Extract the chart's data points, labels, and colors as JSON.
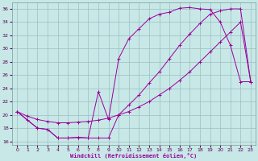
{
  "xlabel": "Windchill (Refroidissement éolien,°C)",
  "background_color": "#c8e8e8",
  "line_color": "#990099",
  "grid_color": "#9bbebe",
  "xlim": [
    -0.5,
    23.5
  ],
  "ylim": [
    15.5,
    37.0
  ],
  "xticks": [
    0,
    1,
    2,
    3,
    4,
    5,
    6,
    7,
    8,
    9,
    10,
    11,
    12,
    13,
    14,
    15,
    16,
    17,
    18,
    19,
    20,
    21,
    22,
    23
  ],
  "yticks": [
    16,
    18,
    20,
    22,
    24,
    26,
    28,
    30,
    32,
    34,
    36
  ],
  "curve1_x": [
    0,
    1,
    2,
    3,
    4,
    5,
    6,
    7,
    8,
    9,
    10,
    11,
    12,
    13,
    14,
    15,
    16,
    17,
    18,
    19,
    20,
    21,
    22,
    23
  ],
  "curve1_y": [
    20.5,
    19.2,
    18.0,
    17.8,
    16.5,
    16.5,
    16.6,
    16.5,
    23.5,
    19.3,
    28.5,
    31.5,
    33.0,
    34.5,
    35.2,
    35.5,
    36.1,
    36.2,
    36.0,
    35.9,
    34.0,
    30.5,
    25.0,
    25.0
  ],
  "curve2_x": [
    0,
    2,
    3,
    4,
    5,
    6,
    7,
    8,
    9,
    10,
    11,
    12,
    13,
    14,
    15,
    16,
    17,
    18,
    19,
    20,
    21,
    22,
    23
  ],
  "curve2_y": [
    20.5,
    18.0,
    17.8,
    16.5,
    16.5,
    16.6,
    16.5,
    16.5,
    16.5,
    20.0,
    21.5,
    23.0,
    24.8,
    26.5,
    28.5,
    30.5,
    32.2,
    33.8,
    35.2,
    35.7,
    36.0,
    36.0,
    25.0
  ],
  "curve3_x": [
    0,
    1,
    2,
    3,
    4,
    5,
    6,
    7,
    8,
    9,
    10,
    11,
    12,
    13,
    14,
    15,
    16,
    17,
    18,
    19,
    20,
    21,
    22,
    23
  ],
  "curve3_y": [
    20.5,
    19.8,
    19.3,
    19.0,
    18.8,
    18.8,
    18.9,
    19.0,
    19.2,
    19.5,
    20.0,
    20.5,
    21.2,
    22.0,
    23.0,
    24.0,
    25.2,
    26.5,
    28.0,
    29.5,
    31.0,
    32.5,
    34.0,
    25.0
  ]
}
